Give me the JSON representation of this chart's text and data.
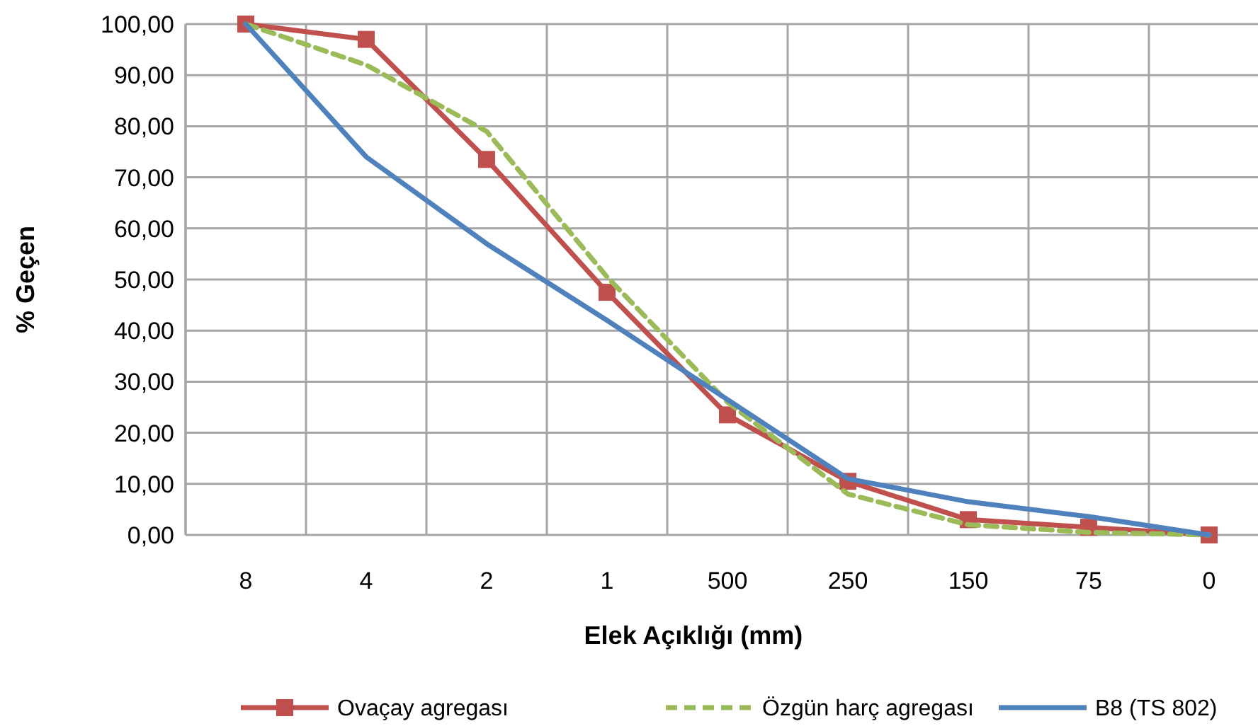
{
  "chart_data": {
    "type": "line",
    "xlabel": "Elek Açıklığı (mm)",
    "ylabel": "% Geçen",
    "categories": [
      "8",
      "4",
      "2",
      "1",
      "500",
      "250",
      "150",
      "75",
      "0"
    ],
    "ylim": [
      0,
      100
    ],
    "yticks": [
      {
        "value": 0,
        "label": "0,00"
      },
      {
        "value": 10,
        "label": "10,00"
      },
      {
        "value": 20,
        "label": "20,00"
      },
      {
        "value": 30,
        "label": "30,00"
      },
      {
        "value": 40,
        "label": "40,00"
      },
      {
        "value": 50,
        "label": "50,00"
      },
      {
        "value": 60,
        "label": "60,00"
      },
      {
        "value": 70,
        "label": "70,00"
      },
      {
        "value": 80,
        "label": "80,00"
      },
      {
        "value": 90,
        "label": "90,00"
      },
      {
        "value": 100,
        "label": "100,00"
      }
    ],
    "grid": true,
    "legend": "bottom",
    "series": [
      {
        "name": "Ovaçay agregası",
        "color": "#c0504d",
        "marker": "square",
        "line_style": "solid",
        "values": [
          100,
          97,
          73.5,
          47.5,
          23.5,
          10.5,
          3,
          1.5,
          0
        ]
      },
      {
        "name": "Özgün harç agregası",
        "color": "#9bbb59",
        "marker": "none",
        "line_style": "dashed",
        "values": [
          100,
          92,
          79,
          50.5,
          26,
          8,
          2,
          0.5,
          0
        ]
      },
      {
        "name": "B8 (TS 802)",
        "color": "#4f81bd",
        "marker": "none",
        "line_style": "solid",
        "values": [
          100,
          74,
          57,
          42,
          26.5,
          11,
          6.5,
          3.6,
          0
        ]
      }
    ]
  }
}
